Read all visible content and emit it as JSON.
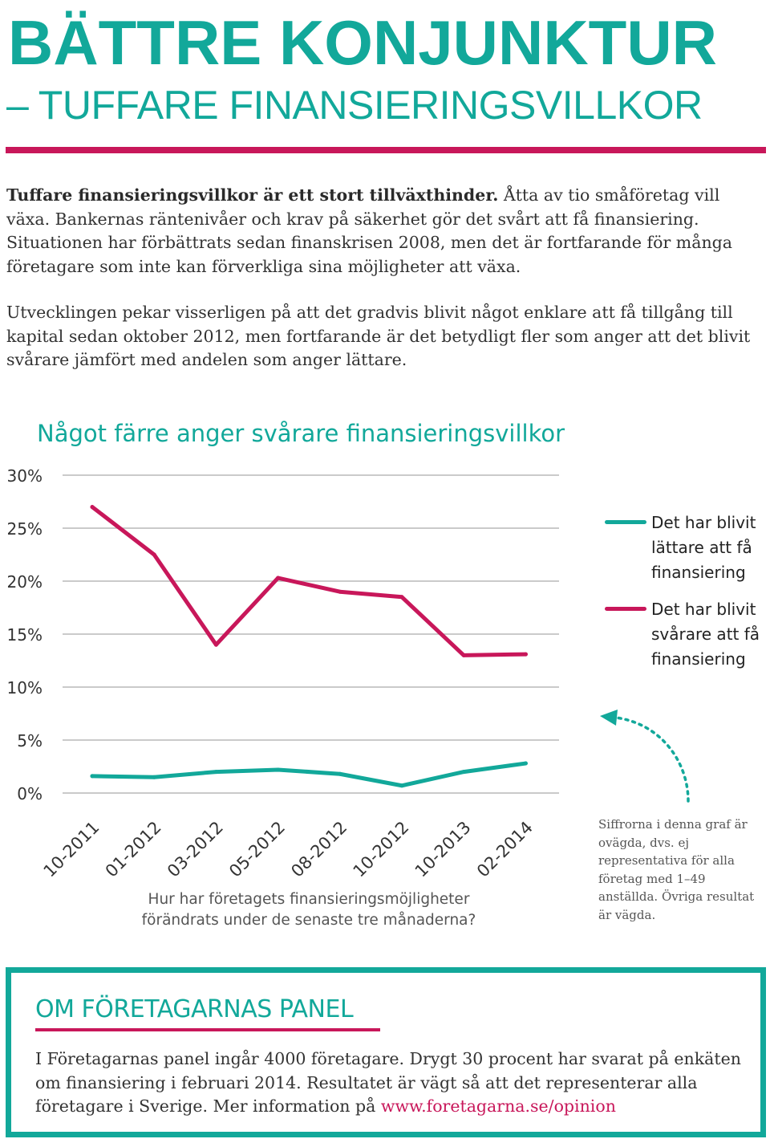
{
  "header": {
    "title": "BÄTTRE KONJUNKTUR",
    "subtitle": "– TUFFARE FINANSIERINGSVILLKOR"
  },
  "intro": {
    "p1_bold": "Tuffare finansieringsvillkor är ett stort tillväxthinder.",
    "p1_rest": " Åtta av tio småföretag vill växa. Bankernas räntenivåer och krav på säkerhet gör det svårt att få finansiering. Situationen har förbättrats sedan finanskrisen 2008, men det är fortfarande för många företagare som inte kan förverkliga sina möjligheter att växa.",
    "p2": "Utvecklingen pekar visserligen på att det gradvis blivit något enklare att få tillgång till kapital sedan oktober 2012, men fortfarande är det betydligt fler som anger att det blivit svårare jämfört med andelen som anger lättare."
  },
  "chart_data": {
    "type": "line",
    "title": "Något färre anger svårare finansieringsvillkor",
    "xlabel": "Hur har företagets finansieringsmöjligheter förändrats under de senaste tre månaderna?",
    "ylabel": "",
    "categories": [
      "10-2011",
      "01-2012",
      "03-2012",
      "05-2012",
      "08-2012",
      "10-2012",
      "10-2013",
      "02-2014"
    ],
    "y_ticks": [
      "0%",
      "5%",
      "10%",
      "15%",
      "20%",
      "25%",
      "30%"
    ],
    "ylim": [
      0,
      30
    ],
    "grid": true,
    "legend_position": "right",
    "series": [
      {
        "name": "Det har blivit lättare att få finansiering",
        "color": "#12a89a",
        "values": [
          1.6,
          1.5,
          2.0,
          2.2,
          1.8,
          0.7,
          2.0,
          2.8
        ]
      },
      {
        "name": "Det har blivit svårare att få finansiering",
        "color": "#c8175a",
        "values": [
          27.0,
          22.5,
          14.0,
          20.3,
          19.0,
          18.5,
          13.0,
          13.1
        ]
      }
    ]
  },
  "legend": {
    "easier": "Det har blivit lättare att få finansiering",
    "harder": "Det har blivit svårare att få finansiering"
  },
  "footnote": "Siffrorna i denna graf är ovägda, dvs. ej representativa för alla företag med 1–49 anställda. Övriga resultat är vägda.",
  "panel": {
    "title": "OM FÖRETAGARNAS PANEL",
    "body": "I Företagarnas panel ingår 4000 företagare. Drygt 30 procent har svarat på enkäten om finansiering i februari 2014. Resultatet är vägt så att det representerar alla företagare i Sverige. Mer information på ",
    "link": "www.foretagarna.se/opinion"
  },
  "colors": {
    "teal": "#12a89a",
    "magenta": "#c8175a",
    "grid": "#b8b8b8"
  }
}
